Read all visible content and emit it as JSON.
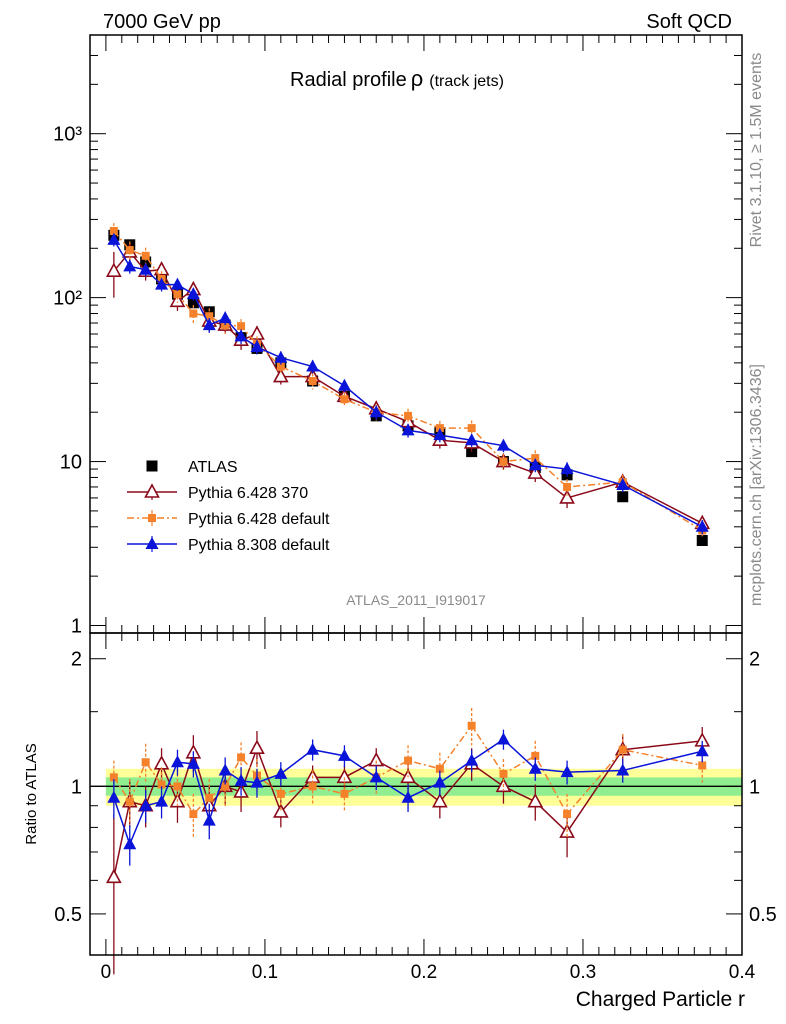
{
  "header": {
    "left": "7000 GeV pp",
    "right": "Soft QCD"
  },
  "side_labels": {
    "rivet": "Rivet 3.1.10, ≥ 1.5M events",
    "mcplots": "mcplots.cern.ch [arXiv:1306.3436]"
  },
  "colors": {
    "atlas": "#000000",
    "py6_370": "#8b0a1a",
    "py6_default": "#f5822a",
    "py8": "#0a14d8",
    "band_inner": "#90ee90",
    "band_outer": "#ffff99"
  },
  "chart_data": [
    {
      "type": "scatter",
      "panel": "main",
      "title_main": "Radial profile",
      "title_symbol": "ρ",
      "title_sub": "(track jets)",
      "watermark": "ATLAS_2011_I919017",
      "yscale": "log",
      "ylim": [
        0.9,
        4000
      ],
      "xlim": [
        -0.01,
        0.4
      ],
      "y_tick_labels": [
        "1",
        "10",
        "10²",
        "10³"
      ],
      "legend_position": "bottom-left",
      "x": [
        0.005,
        0.015,
        0.025,
        0.035,
        0.045,
        0.055,
        0.065,
        0.075,
        0.085,
        0.095,
        0.11,
        0.13,
        0.15,
        0.17,
        0.19,
        0.21,
        0.23,
        0.25,
        0.27,
        0.29,
        0.325,
        0.375
      ],
      "series": [
        {
          "name": "ATLAS",
          "marker": "square",
          "values": [
            240,
            210,
            165,
            130,
            105,
            93,
            82,
            68,
            57,
            49,
            40,
            31,
            25,
            19,
            16.5,
            15,
            11.5,
            10,
            9.2,
            8.3,
            6.1,
            3.3
          ],
          "errors": [
            12,
            10,
            8,
            6,
            5,
            4,
            4,
            3,
            3,
            2.5,
            2,
            1.5,
            1.2,
            1,
            0.8,
            0.8,
            0.6,
            0.5,
            0.5,
            0.4,
            0.3,
            0.2
          ]
        },
        {
          "name": "Pythia 6.428 370",
          "marker": "open-triangle",
          "values": [
            145,
            190,
            145,
            148,
            95,
            112,
            72,
            68,
            55,
            60,
            33,
            33,
            25,
            21,
            17.5,
            13.5,
            13,
            10,
            8.5,
            6,
            7.5,
            4.2
          ],
          "errors": [
            45,
            25,
            18,
            15,
            12,
            12,
            10,
            8,
            7,
            7,
            3.5,
            3,
            2.5,
            2.2,
            1.8,
            1.5,
            1.5,
            1.1,
            1,
            0.8,
            0.8,
            0.4
          ]
        },
        {
          "name": "Pythia 6.428 default",
          "marker": "square",
          "values": [
            255,
            195,
            180,
            130,
            105,
            80,
            77,
            68,
            67,
            52,
            38,
            31,
            24,
            20,
            19,
            16,
            16,
            10,
            10.5,
            7,
            7.5,
            3.8
          ],
          "errors": [
            30,
            25,
            22,
            15,
            12,
            10,
            9,
            8,
            7,
            6,
            4,
            3.5,
            2.5,
            2.2,
            2,
            1.7,
            1.8,
            1.1,
            1.2,
            0.8,
            0.8,
            0.4
          ]
        },
        {
          "name": "Pythia 8.308 default",
          "marker": "filled-triangle",
          "values": [
            225,
            155,
            148,
            120,
            120,
            105,
            68,
            75,
            58,
            50,
            43,
            38,
            29,
            20,
            15.5,
            14.5,
            13.5,
            12.5,
            9.5,
            9,
            7.2,
            4
          ],
          "errors": [
            20,
            15,
            13,
            11,
            10,
            9,
            7,
            7,
            6,
            5,
            4,
            3.5,
            2.5,
            2,
            1.5,
            1.4,
            1.2,
            1.1,
            0.9,
            0.9,
            0.7,
            0.4
          ]
        }
      ]
    },
    {
      "type": "scatter",
      "panel": "ratio",
      "ylabel": "Ratio to ATLAS",
      "xlabel": "Charged Particle r",
      "ylim": [
        0.4,
        2.3
      ],
      "xlim": [
        -0.01,
        0.4
      ],
      "x_tick_labels": [
        "0",
        "0.1",
        "0.2",
        "0.3",
        "0.4"
      ],
      "y_tick_labels": [
        "0.5",
        "1",
        "2"
      ],
      "x": [
        0.005,
        0.015,
        0.025,
        0.035,
        0.045,
        0.055,
        0.065,
        0.075,
        0.085,
        0.095,
        0.11,
        0.13,
        0.15,
        0.17,
        0.19,
        0.21,
        0.23,
        0.25,
        0.27,
        0.29,
        0.325,
        0.375
      ],
      "band": {
        "inner": [
          0.05,
          0.05,
          0.05,
          0.05,
          0.05,
          0.05,
          0.05,
          0.05,
          0.05,
          0.05,
          0.05,
          0.05,
          0.05,
          0.05,
          0.05,
          0.05,
          0.05,
          0.05,
          0.05,
          0.05,
          0.05,
          0.05
        ],
        "outer": [
          0.1,
          0.1,
          0.1,
          0.1,
          0.1,
          0.1,
          0.1,
          0.1,
          0.1,
          0.1,
          0.1,
          0.1,
          0.1,
          0.1,
          0.1,
          0.1,
          0.1,
          0.1,
          0.1,
          0.1,
          0.1,
          0.1
        ]
      },
      "series": [
        {
          "name": "Pythia 6.428 370",
          "marker": "open-triangle",
          "values": [
            0.61,
            0.92,
            0.9,
            1.13,
            0.92,
            1.2,
            0.9,
            1.0,
            0.97,
            1.23,
            0.87,
            1.05,
            1.05,
            1.15,
            1.05,
            0.92,
            1.13,
            1.0,
            0.92,
            0.78,
            1.22,
            1.28
          ],
          "errors": [
            0.25,
            0.12,
            0.1,
            0.1,
            0.1,
            0.12,
            0.1,
            0.1,
            0.1,
            0.12,
            0.07,
            0.07,
            0.07,
            0.08,
            0.08,
            0.08,
            0.1,
            0.09,
            0.09,
            0.1,
            0.1,
            0.1
          ]
        },
        {
          "name": "Pythia 6.428 default",
          "marker": "square",
          "values": [
            1.05,
            0.92,
            1.14,
            1.01,
            1.0,
            0.86,
            0.94,
            1.0,
            1.17,
            1.06,
            0.96,
            1.0,
            0.96,
            1.05,
            1.15,
            1.1,
            1.39,
            1.07,
            1.18,
            0.86,
            1.22,
            1.12
          ],
          "errors": [
            0.1,
            0.12,
            0.12,
            0.1,
            0.1,
            0.1,
            0.1,
            0.1,
            0.1,
            0.1,
            0.09,
            0.09,
            0.09,
            0.1,
            0.1,
            0.1,
            0.14,
            0.09,
            0.1,
            0.1,
            0.11,
            0.1
          ]
        },
        {
          "name": "Pythia 8.308 default",
          "marker": "filled-triangle",
          "values": [
            0.94,
            0.73,
            0.9,
            0.92,
            1.14,
            1.13,
            0.83,
            1.09,
            1.03,
            1.02,
            1.07,
            1.22,
            1.18,
            1.05,
            0.94,
            1.02,
            1.15,
            1.29,
            1.1,
            1.08,
            1.09,
            1.21
          ],
          "errors": [
            0.1,
            0.08,
            0.08,
            0.08,
            0.08,
            0.08,
            0.08,
            0.08,
            0.08,
            0.08,
            0.07,
            0.07,
            0.07,
            0.07,
            0.07,
            0.07,
            0.07,
            0.07,
            0.07,
            0.07,
            0.07,
            0.07
          ]
        }
      ]
    }
  ]
}
